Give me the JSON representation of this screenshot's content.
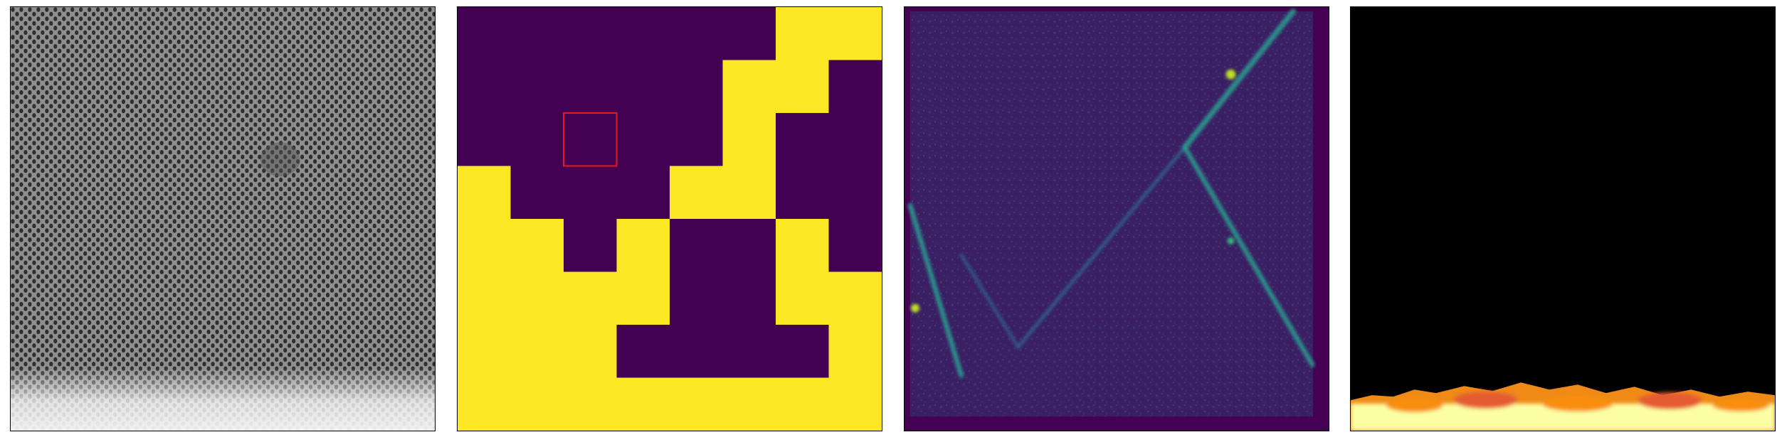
{
  "figure": {
    "panels": [
      {
        "id": "p1",
        "kind": "grayscale-texture-micrograph"
      },
      {
        "id": "p2",
        "kind": "binary-mask",
        "colormap": "viridis",
        "colors": {
          "low": "#440154",
          "high": "#fde725",
          "highlight": "#e41a1c"
        },
        "grid_size": 8,
        "mask": [
          [
            0,
            0,
            0,
            0,
            0,
            0,
            1,
            1
          ],
          [
            0,
            0,
            0,
            0,
            0,
            1,
            1,
            0
          ],
          [
            0,
            0,
            0,
            0,
            0,
            1,
            0,
            0
          ],
          [
            1,
            0,
            0,
            0,
            1,
            1,
            0,
            0
          ],
          [
            1,
            1,
            0,
            1,
            0,
            0,
            1,
            0
          ],
          [
            1,
            1,
            1,
            1,
            0,
            0,
            1,
            1
          ],
          [
            1,
            1,
            1,
            0,
            0,
            0,
            0,
            1
          ],
          [
            1,
            1,
            1,
            1,
            1,
            1,
            1,
            1
          ]
        ],
        "highlight_cell": {
          "row": 2,
          "col": 2
        }
      },
      {
        "id": "p3",
        "kind": "heatmap",
        "colormap": "viridis",
        "colors": {
          "background": "#3b1f63",
          "border": "#440154",
          "bright": "#35b779",
          "peak": "#bddf26"
        }
      },
      {
        "id": "p4",
        "kind": "heatmap",
        "colormap": "inferno",
        "colors": {
          "background": "#000000",
          "peak": "#fcffa4",
          "mid": "#f98e09"
        }
      }
    ]
  }
}
